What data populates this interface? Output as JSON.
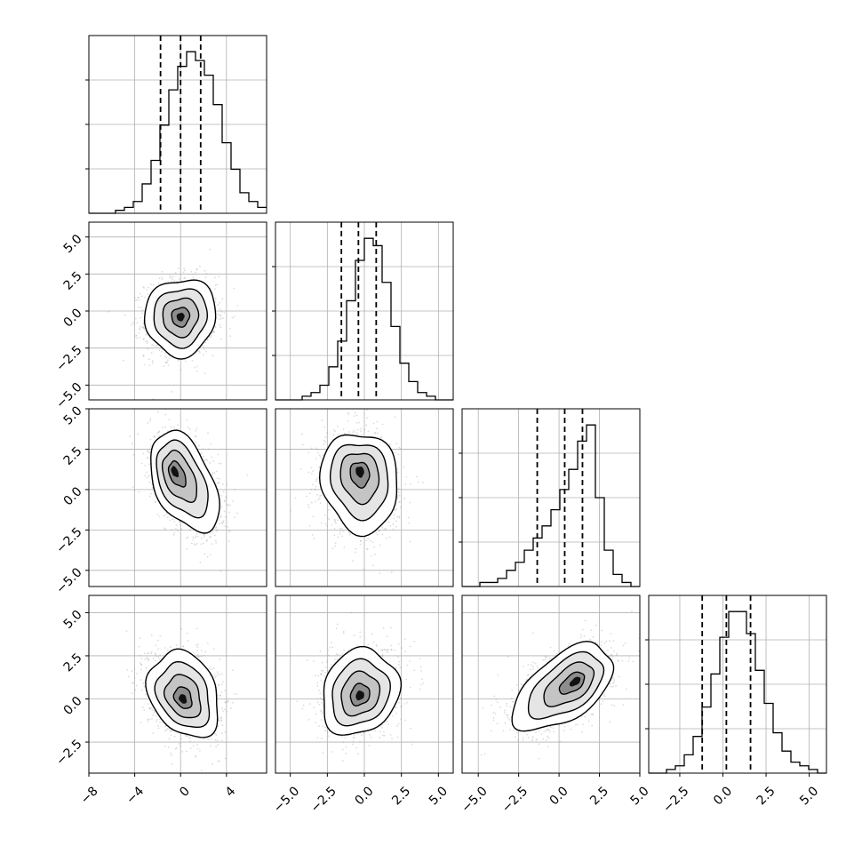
{
  "figure": {
    "background": "#ffffff",
    "frame_color": "#000000",
    "grid_color": "#b0b0b0",
    "line_color": "#000000",
    "point_color": "#9a9a9a"
  },
  "chart_data": {
    "type": "corner",
    "n_params": 4,
    "grid": true,
    "params": [
      {
        "range": [
          -8,
          7.5
        ],
        "ticks": [
          -8,
          -4,
          0,
          4
        ],
        "tick_labels": [
          "−8",
          "−4",
          "0",
          "4"
        ],
        "hist_edges_start": -8,
        "bin_width": 0.775,
        "hist_counts": [
          0,
          0,
          0,
          1,
          2,
          4,
          10,
          18,
          30,
          42,
          50,
          55,
          52,
          47,
          37,
          24,
          15,
          7,
          4,
          2
        ],
        "quantiles": [
          -1.75,
          0.0,
          1.75
        ]
      },
      {
        "range": [
          -6,
          6
        ],
        "ticks": [
          -5,
          -2.5,
          0,
          2.5,
          5
        ],
        "tick_labels": [
          "−5.0",
          "−2.5",
          "0.0",
          "2.5",
          "5.0"
        ],
        "hist_edges_start": -6,
        "bin_width": 0.6,
        "hist_counts": [
          0,
          0,
          0,
          1,
          2,
          4,
          9,
          16,
          27,
          38,
          44,
          42,
          32,
          20,
          10,
          5,
          2,
          1,
          0,
          0
        ],
        "quantiles": [
          -1.55,
          -0.4,
          0.8
        ]
      },
      {
        "range": [
          -6,
          5
        ],
        "ticks": [
          -5,
          -2.5,
          0,
          2.5,
          5
        ],
        "tick_labels": [
          "−5.0",
          "−2.5",
          "0.0",
          "2.5",
          "5.0"
        ],
        "hist_edges_start": -6,
        "bin_width": 0.55,
        "hist_counts": [
          0,
          0,
          1,
          1,
          2,
          4,
          6,
          9,
          12,
          15,
          19,
          24,
          29,
          36,
          40,
          22,
          9,
          3,
          1,
          0
        ],
        "quantiles": [
          -1.35,
          0.35,
          1.45
        ]
      },
      {
        "range": [
          -4.3,
          6
        ],
        "ticks": [
          -2.5,
          0,
          2.5,
          5
        ],
        "tick_labels": [
          "−2.5",
          "0.0",
          "2.5",
          "5.0"
        ],
        "hist_edges_start": -4.3,
        "bin_width": 0.515,
        "hist_counts": [
          0,
          0,
          1,
          2,
          5,
          10,
          18,
          27,
          37,
          44,
          44,
          38,
          28,
          19,
          11,
          6,
          3,
          2,
          1,
          0
        ],
        "quantiles": [
          -1.2,
          0.2,
          1.6
        ]
      }
    ],
    "pairs": [
      {
        "x": 0,
        "y": 1,
        "center": [
          0.0,
          -0.4
        ],
        "sigma": [
          1.55,
          1.3
        ],
        "rho": 0.05,
        "core": [
          0.0,
          -0.4
        ]
      },
      {
        "x": 0,
        "y": 2,
        "center": [
          0.4,
          0.4
        ],
        "sigma": [
          1.5,
          1.55
        ],
        "rho": -0.45,
        "core": [
          -0.5,
          1.1
        ]
      },
      {
        "x": 1,
        "y": 2,
        "center": [
          -0.3,
          0.4
        ],
        "sigma": [
          1.3,
          1.55
        ],
        "rho": -0.1,
        "core": [
          -0.3,
          1.1
        ]
      },
      {
        "x": 0,
        "y": 3,
        "center": [
          0.3,
          0.3
        ],
        "sigma": [
          1.55,
          1.25
        ],
        "rho": -0.25,
        "core": [
          0.2,
          0.0
        ]
      },
      {
        "x": 1,
        "y": 3,
        "center": [
          -0.3,
          0.4
        ],
        "sigma": [
          1.3,
          1.25
        ],
        "rho": 0.15,
        "core": [
          -0.3,
          0.2
        ]
      },
      {
        "x": 2,
        "y": 3,
        "center": [
          0.2,
          0.6
        ],
        "sigma": [
          1.55,
          1.25
        ],
        "rho": 0.55,
        "core": [
          1.0,
          1.0
        ]
      }
    ],
    "contour_levels_sigma": [
      0.5,
      1.0,
      1.5,
      2.0
    ]
  }
}
